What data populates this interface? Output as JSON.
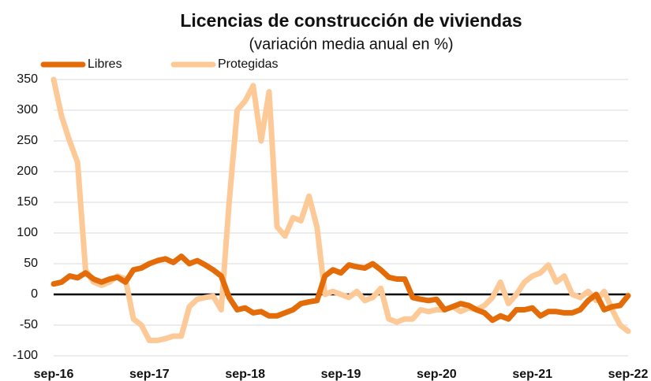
{
  "chart_data": {
    "type": "line",
    "title": "Licencias de construcción de viviendas",
    "subtitle": "(variación media anual en %)",
    "categories": [
      "sep-16",
      null,
      null,
      null,
      null,
      null,
      null,
      null,
      null,
      null,
      null,
      null,
      "sep-17",
      null,
      null,
      null,
      null,
      null,
      null,
      null,
      null,
      null,
      null,
      null,
      "sep-18",
      null,
      null,
      null,
      null,
      null,
      null,
      null,
      null,
      null,
      null,
      null,
      "sep-19",
      null,
      null,
      null,
      null,
      null,
      null,
      null,
      null,
      null,
      null,
      null,
      "sep-20",
      null,
      null,
      null,
      null,
      null,
      null,
      null,
      null,
      null,
      null,
      null,
      "sep-21",
      null,
      null,
      null,
      null,
      null,
      null,
      null,
      null,
      null,
      null,
      null,
      "sep-22"
    ],
    "series": [
      {
        "name": "Libres",
        "color": "#e36c09",
        "values": [
          17,
          20,
          30,
          27,
          35,
          25,
          20,
          25,
          28,
          20,
          40,
          43,
          50,
          55,
          58,
          52,
          62,
          50,
          55,
          48,
          40,
          30,
          -5,
          -25,
          -22,
          -30,
          -28,
          -35,
          -35,
          -30,
          -25,
          -15,
          -12,
          -10,
          30,
          40,
          35,
          48,
          45,
          43,
          50,
          40,
          28,
          25,
          25,
          -5,
          -8,
          -10,
          -8,
          -25,
          -20,
          -15,
          -18,
          -25,
          -30,
          -42,
          -35,
          -40,
          -25,
          -25,
          -22,
          -35,
          -28,
          -28,
          -30,
          -30,
          -25,
          -10,
          0,
          -25,
          -20,
          -18,
          -2
        ]
      },
      {
        "name": "Protegidas",
        "color": "#fdc996",
        "values": [
          350,
          290,
          250,
          215,
          40,
          20,
          15,
          20,
          30,
          25,
          -40,
          -50,
          -75,
          -75,
          -72,
          -68,
          -68,
          -20,
          -8,
          -5,
          -3,
          -25,
          150,
          300,
          315,
          340,
          250,
          330,
          110,
          95,
          125,
          120,
          160,
          110,
          0,
          5,
          0,
          -5,
          5,
          -10,
          -5,
          10,
          -40,
          -45,
          -40,
          -40,
          -25,
          -28,
          -25,
          -25,
          -20,
          -28,
          -22,
          -25,
          -18,
          -5,
          20,
          -15,
          0,
          20,
          30,
          35,
          48,
          20,
          30,
          0,
          -5,
          5,
          -10,
          5,
          -25,
          -50,
          -60
        ]
      }
    ],
    "ylim": [
      -100,
      350
    ],
    "yticks": [
      -100,
      -50,
      0,
      50,
      100,
      150,
      200,
      250,
      300,
      350
    ],
    "grid": true,
    "legend": "top-left"
  }
}
